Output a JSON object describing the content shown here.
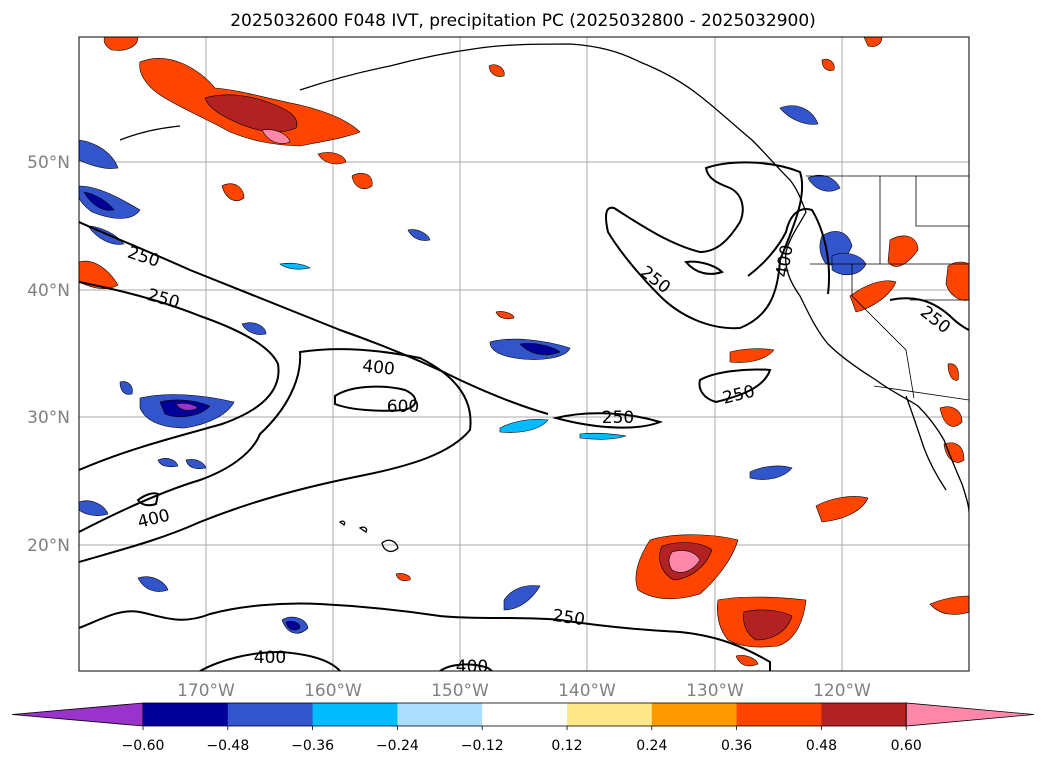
{
  "title": "2025032600 F048 IVT, precipitation PC (2025032800 - 2025032900)",
  "map": {
    "lon_labels": [
      "170°W",
      "160°W",
      "150°W",
      "140°W",
      "130°W",
      "120°W"
    ],
    "lat_labels": [
      "50°N",
      "40°N",
      "30°N",
      "20°N"
    ],
    "grid": true,
    "contour_levels": [
      "250",
      "400",
      "600"
    ],
    "contour_labels": [
      {
        "text": "250"
      },
      {
        "text": "250"
      },
      {
        "text": "250"
      },
      {
        "text": "400"
      },
      {
        "text": "250"
      },
      {
        "text": "250"
      },
      {
        "text": "400"
      },
      {
        "text": "600"
      },
      {
        "text": "400"
      },
      {
        "text": "250"
      },
      {
        "text": "400"
      },
      {
        "text": "400"
      },
      {
        "text": "250"
      }
    ]
  },
  "colorbar": {
    "tick_labels": [
      "−0.60",
      "−0.48",
      "−0.36",
      "−0.24",
      "−0.12",
      "0.12",
      "0.24",
      "0.36",
      "0.48",
      "0.60"
    ],
    "bins": [
      {
        "range": "< -0.60",
        "color": "#9933cc"
      },
      {
        "range": "-0.60 to -0.48",
        "color": "#000099"
      },
      {
        "range": "-0.48 to -0.36",
        "color": "#3355cc"
      },
      {
        "range": "-0.36 to -0.24",
        "color": "#00bbff"
      },
      {
        "range": "-0.24 to -0.12",
        "color": "#aaddff"
      },
      {
        "range": "-0.12 to 0.12",
        "color": "#ffffff"
      },
      {
        "range": "0.12 to 0.24",
        "color": "#ffe88a"
      },
      {
        "range": "0.24 to 0.36",
        "color": "#ff9900"
      },
      {
        "range": "0.36 to 0.48",
        "color": "#ff4400"
      },
      {
        "range": "0.48 to 0.60",
        "color": "#b22222"
      },
      {
        "range": "> 0.60",
        "color": "#ff88aa"
      }
    ]
  }
}
